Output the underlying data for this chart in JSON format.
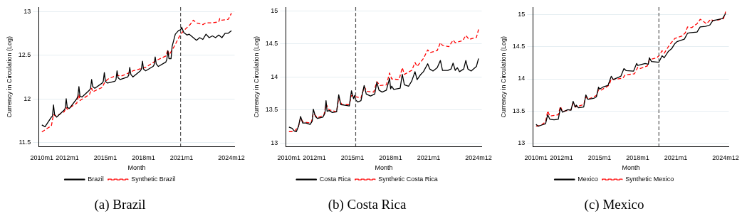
{
  "chart_data": [
    {
      "type": "line",
      "title": "(a) Brazil",
      "xlabel": "Month",
      "ylabel": "Currency in Circulation (Log)",
      "xlim": [
        "2009-10",
        "2025-03"
      ],
      "ylim": [
        11.45,
        13.05
      ],
      "xticks": [
        {
          "value": "2010-01",
          "label": "2010m1"
        },
        {
          "value": "2012-01",
          "label": "2012m1"
        },
        {
          "value": "2015-01",
          "label": "2015m1"
        },
        {
          "value": "2018-01",
          "label": "2018m1"
        },
        {
          "value": "2021-01",
          "label": "2021m1"
        },
        {
          "value": "2024-12",
          "label": "2024m12"
        }
      ],
      "yticks": [
        11.5,
        12,
        12.5,
        13
      ],
      "grid": "y",
      "legend": "bottom",
      "marker": "none",
      "ref_lines": [
        {
          "axis": "x",
          "value": "2020-12",
          "label": null,
          "color": "#555555",
          "line_style": "dashed"
        }
      ],
      "series": [
        {
          "name": "Brazil",
          "color": "#000000",
          "line_style": "solid",
          "x": [
            "2010-01",
            "2010-04",
            "2010-10",
            "2010-11",
            "2010-12",
            "2011-01",
            "2011-03",
            "2011-10",
            "2011-11",
            "2011-12",
            "2012-01",
            "2012-03",
            "2012-10",
            "2012-11",
            "2012-12",
            "2013-01",
            "2013-03",
            "2013-10",
            "2013-11",
            "2013-12",
            "2014-01",
            "2014-03",
            "2014-10",
            "2014-11",
            "2014-12",
            "2015-01",
            "2015-03",
            "2015-10",
            "2015-11",
            "2015-12",
            "2016-01",
            "2016-03",
            "2016-10",
            "2016-11",
            "2016-12",
            "2017-01",
            "2017-03",
            "2017-10",
            "2017-11",
            "2017-12",
            "2018-01",
            "2018-03",
            "2018-10",
            "2018-11",
            "2018-12",
            "2019-01",
            "2019-03",
            "2019-10",
            "2019-11",
            "2019-12",
            "2020-01",
            "2020-03",
            "2020-04",
            "2020-07",
            "2020-10",
            "2020-12",
            "2021-01",
            "2021-03",
            "2021-06",
            "2021-08",
            "2021-10",
            "2021-12",
            "2022-03",
            "2022-06",
            "2022-09",
            "2022-12",
            "2023-03",
            "2023-06",
            "2023-09",
            "2023-12",
            "2024-03",
            "2024-06",
            "2024-09",
            "2024-12"
          ],
          "values": [
            11.7,
            11.68,
            11.79,
            11.8,
            11.93,
            11.82,
            11.79,
            11.87,
            11.89,
            12.0,
            11.9,
            11.89,
            12.0,
            12.03,
            12.14,
            12.03,
            12.02,
            12.1,
            12.12,
            12.22,
            12.14,
            12.12,
            12.18,
            12.2,
            12.3,
            12.2,
            12.18,
            12.2,
            12.22,
            12.32,
            12.24,
            12.22,
            12.25,
            12.27,
            12.36,
            12.28,
            12.25,
            12.32,
            12.34,
            12.43,
            12.34,
            12.32,
            12.37,
            12.39,
            12.48,
            12.4,
            12.37,
            12.42,
            12.45,
            12.55,
            12.46,
            12.46,
            12.6,
            12.74,
            12.78,
            12.79,
            12.82,
            12.76,
            12.73,
            12.74,
            12.72,
            12.7,
            12.67,
            12.7,
            12.68,
            12.74,
            12.7,
            12.72,
            12.7,
            12.73,
            12.7,
            12.75,
            12.75,
            12.78
          ]
        },
        {
          "name": "Synthetic Brazil",
          "color": "#ff0000",
          "line_style": "dashed",
          "x": [
            "2010-01",
            "2010-06",
            "2010-10",
            "2010-12",
            "2011-02",
            "2011-10",
            "2011-12",
            "2012-01",
            "2012-10",
            "2012-12",
            "2013-01",
            "2013-10",
            "2013-12",
            "2014-01",
            "2014-10",
            "2014-12",
            "2015-01",
            "2015-04",
            "2015-10",
            "2015-12",
            "2016-04",
            "2016-12",
            "2017-03",
            "2017-12",
            "2018-03",
            "2018-12",
            "2019-03",
            "2019-10",
            "2019-12",
            "2020-01",
            "2020-06",
            "2020-12",
            "2021-03",
            "2021-09",
            "2021-12",
            "2022-03",
            "2022-09",
            "2022-12",
            "2023-06",
            "2023-12",
            "2024-01",
            "2024-03",
            "2024-09",
            "2024-12"
          ],
          "values": [
            11.62,
            11.66,
            11.69,
            11.82,
            11.8,
            11.85,
            11.9,
            11.88,
            11.95,
            12.05,
            11.98,
            12.05,
            12.12,
            12.08,
            12.13,
            12.18,
            12.2,
            12.23,
            12.26,
            12.27,
            12.26,
            12.3,
            12.32,
            12.35,
            12.36,
            12.43,
            12.45,
            12.49,
            12.56,
            12.5,
            12.6,
            12.74,
            12.78,
            12.85,
            12.9,
            12.87,
            12.85,
            12.87,
            12.87,
            12.88,
            12.92,
            12.9,
            12.91,
            12.98
          ]
        }
      ]
    },
    {
      "type": "line",
      "title": "(b) Costa Rica",
      "xlabel": "Month",
      "ylabel": "Currency in Circulation (Log)",
      "xlim": [
        "2009-10",
        "2025-03"
      ],
      "ylim": [
        12.94,
        15.06
      ],
      "xticks": [
        {
          "value": "2010-01",
          "label": "2010m1"
        },
        {
          "value": "2012-01",
          "label": "2012m1"
        },
        {
          "value": "2015-01",
          "label": "2015m1"
        },
        {
          "value": "2018-01",
          "label": "2018m1"
        },
        {
          "value": "2021-01",
          "label": "2021m1"
        },
        {
          "value": "2024-12",
          "label": "2024m12"
        }
      ],
      "yticks": [
        13,
        13.5,
        14,
        14.5,
        15
      ],
      "grid": "y",
      "legend": "bottom",
      "marker": "none",
      "ref_lines": [
        {
          "axis": "x",
          "value": "2015-04",
          "label": null,
          "color": "#555555",
          "line_style": "dashed"
        }
      ],
      "series": [
        {
          "name": "Costa Rica",
          "color": "#000000",
          "line_style": "solid",
          "x": [
            "2010-01",
            "2010-04",
            "2010-06",
            "2010-08",
            "2010-10",
            "2010-12",
            "2011-02",
            "2011-05",
            "2011-09",
            "2011-11",
            "2011-12",
            "2012-02",
            "2012-04",
            "2012-09",
            "2012-11",
            "2012-12",
            "2013-01",
            "2013-03",
            "2013-06",
            "2013-10",
            "2013-12",
            "2014-02",
            "2014-06",
            "2014-10",
            "2014-12",
            "2015-02",
            "2015-03",
            "2015-04",
            "2015-06",
            "2015-09",
            "2015-12",
            "2016-02",
            "2016-06",
            "2016-10",
            "2016-12",
            "2017-02",
            "2017-05",
            "2017-09",
            "2017-12",
            "2018-01",
            "2018-02",
            "2018-04",
            "2018-10",
            "2018-12",
            "2019-02",
            "2019-06",
            "2019-09",
            "2019-12",
            "2020-02",
            "2020-05",
            "2020-08",
            "2020-12",
            "2021-02",
            "2021-05",
            "2021-09",
            "2021-12",
            "2022-02",
            "2022-07",
            "2022-10",
            "2022-12",
            "2023-02",
            "2023-04",
            "2023-06",
            "2023-10",
            "2023-12",
            "2024-02",
            "2024-05",
            "2024-10",
            "2024-12"
          ],
          "values": [
            13.24,
            13.22,
            13.18,
            13.17,
            13.25,
            13.4,
            13.3,
            13.3,
            13.28,
            13.33,
            13.51,
            13.4,
            13.37,
            13.39,
            13.45,
            13.64,
            13.48,
            13.49,
            13.46,
            13.47,
            13.73,
            13.58,
            13.57,
            13.56,
            13.79,
            13.67,
            13.72,
            13.65,
            13.62,
            13.64,
            13.87,
            13.74,
            13.71,
            13.74,
            13.92,
            13.8,
            13.77,
            13.8,
            13.98,
            13.82,
            13.86,
            13.81,
            13.83,
            14.04,
            13.88,
            13.86,
            13.94,
            14.08,
            13.96,
            14.03,
            14.08,
            14.2,
            14.12,
            14.09,
            14.14,
            14.25,
            14.1,
            14.1,
            14.12,
            14.21,
            14.1,
            14.14,
            14.08,
            14.12,
            14.25,
            14.12,
            14.09,
            14.16,
            14.28
          ]
        },
        {
          "name": "Synthetic Costa Rica",
          "color": "#ff0000",
          "line_style": "dashed",
          "x": [
            "2010-01",
            "2010-06",
            "2010-10",
            "2010-12",
            "2011-02",
            "2011-10",
            "2011-12",
            "2012-04",
            "2012-10",
            "2012-12",
            "2013-03",
            "2013-10",
            "2013-12",
            "2014-03",
            "2014-10",
            "2014-12",
            "2015-04",
            "2015-09",
            "2015-12",
            "2016-03",
            "2016-09",
            "2016-12",
            "2017-03",
            "2017-09",
            "2017-12",
            "2018-02",
            "2018-09",
            "2018-12",
            "2019-02",
            "2019-09",
            "2019-12",
            "2020-02",
            "2020-08",
            "2020-12",
            "2021-02",
            "2021-09",
            "2021-12",
            "2022-02",
            "2022-08",
            "2022-12",
            "2023-02",
            "2023-09",
            "2023-12",
            "2024-03",
            "2024-10",
            "2024-12"
          ],
          "values": [
            13.17,
            13.17,
            13.25,
            13.38,
            13.32,
            13.3,
            13.45,
            13.38,
            13.42,
            13.59,
            13.5,
            13.47,
            13.68,
            13.58,
            13.58,
            13.72,
            13.7,
            13.68,
            13.85,
            13.78,
            13.77,
            13.93,
            13.87,
            13.88,
            14.06,
            13.97,
            13.96,
            14.14,
            14.04,
            14.1,
            14.22,
            14.16,
            14.28,
            14.41,
            14.37,
            14.4,
            14.52,
            14.48,
            14.46,
            14.56,
            14.52,
            14.55,
            14.63,
            14.57,
            14.6,
            14.72
          ]
        }
      ]
    },
    {
      "type": "line",
      "title": "(c) Mexico",
      "xlabel": "Month",
      "ylabel": "Currency in Circulation (Log)",
      "xlim": [
        "2009-10",
        "2025-03"
      ],
      "ylim": [
        12.94,
        15.12
      ],
      "xticks": [
        {
          "value": "2010-01",
          "label": "2010m1"
        },
        {
          "value": "2012-01",
          "label": "2012m1"
        },
        {
          "value": "2015-01",
          "label": "2015m1"
        },
        {
          "value": "2018-01",
          "label": "2018m1"
        },
        {
          "value": "2021-01",
          "label": "2021m1"
        },
        {
          "value": "2024-12",
          "label": "2024m12"
        }
      ],
      "yticks": [
        13,
        13.5,
        14,
        14.5,
        15
      ],
      "grid": "y",
      "legend": "bottom",
      "marker": "none",
      "ref_lines": [
        {
          "axis": "x",
          "value": "2019-09",
          "label": null,
          "color": "#555555",
          "line_style": "dashed"
        }
      ],
      "series": [
        {
          "name": "Mexico",
          "color": "#000000",
          "line_style": "solid",
          "x": [
            "2010-01",
            "2010-03",
            "2010-10",
            "2010-12",
            "2011-02",
            "2011-06",
            "2011-10",
            "2011-12",
            "2012-02",
            "2012-07",
            "2012-10",
            "2012-12",
            "2013-02",
            "2013-03",
            "2013-05",
            "2013-10",
            "2013-12",
            "2014-02",
            "2014-08",
            "2014-10",
            "2014-12",
            "2015-01",
            "2015-04",
            "2015-09",
            "2015-12",
            "2016-02",
            "2016-09",
            "2016-12",
            "2017-02",
            "2017-09",
            "2017-12",
            "2018-01",
            "2018-08",
            "2018-11",
            "2018-12",
            "2019-02",
            "2019-09",
            "2019-12",
            "2020-02",
            "2020-06",
            "2020-09",
            "2020-12",
            "2021-02",
            "2021-09",
            "2021-12",
            "2022-02",
            "2022-09",
            "2022-12",
            "2023-05",
            "2023-09",
            "2023-12",
            "2024-03",
            "2024-09",
            "2024-12"
          ],
          "values": [
            13.29,
            13.26,
            13.3,
            13.44,
            13.37,
            13.36,
            13.37,
            13.55,
            13.48,
            13.52,
            13.51,
            13.65,
            13.56,
            13.59,
            13.55,
            13.56,
            13.75,
            13.68,
            13.7,
            13.72,
            13.87,
            13.84,
            13.87,
            13.9,
            14.04,
            13.99,
            14.04,
            14.16,
            14.13,
            14.12,
            14.24,
            14.21,
            14.24,
            14.23,
            14.33,
            14.27,
            14.26,
            14.36,
            14.33,
            14.43,
            14.47,
            14.55,
            14.58,
            14.62,
            14.71,
            14.72,
            14.73,
            14.81,
            14.82,
            14.84,
            14.91,
            14.92,
            14.94,
            15.02
          ]
        },
        {
          "name": "Synthetic Mexico",
          "color": "#ff0000",
          "line_style": "dashed",
          "x": [
            "2010-01",
            "2010-06",
            "2010-10",
            "2010-12",
            "2011-02",
            "2011-10",
            "2011-12",
            "2012-02",
            "2012-10",
            "2012-12",
            "2013-02",
            "2013-10",
            "2013-12",
            "2014-02",
            "2014-10",
            "2014-12",
            "2015-02",
            "2015-10",
            "2015-12",
            "2016-03",
            "2016-11",
            "2017-01",
            "2017-10",
            "2018-01",
            "2018-03",
            "2018-10",
            "2018-12",
            "2019-07",
            "2019-09",
            "2019-12",
            "2020-02",
            "2020-07",
            "2020-10",
            "2020-12",
            "2021-07",
            "2021-10",
            "2021-12",
            "2022-04",
            "2022-09",
            "2022-12",
            "2023-02",
            "2023-06",
            "2023-10",
            "2023-12",
            "2024-05",
            "2024-10",
            "2024-12"
          ],
          "values": [
            13.26,
            13.28,
            13.33,
            13.5,
            13.42,
            13.44,
            13.57,
            13.49,
            13.52,
            13.62,
            13.56,
            13.6,
            13.72,
            13.68,
            13.74,
            13.83,
            13.82,
            13.9,
            14.0,
            13.99,
            14.01,
            14.06,
            14.08,
            14.18,
            14.16,
            14.2,
            14.3,
            14.33,
            14.36,
            14.44,
            14.4,
            14.53,
            14.59,
            14.63,
            14.67,
            14.72,
            14.81,
            14.8,
            14.86,
            14.93,
            14.91,
            14.86,
            14.93,
            14.91,
            14.92,
            14.94,
            15.05
          ]
        }
      ]
    }
  ]
}
